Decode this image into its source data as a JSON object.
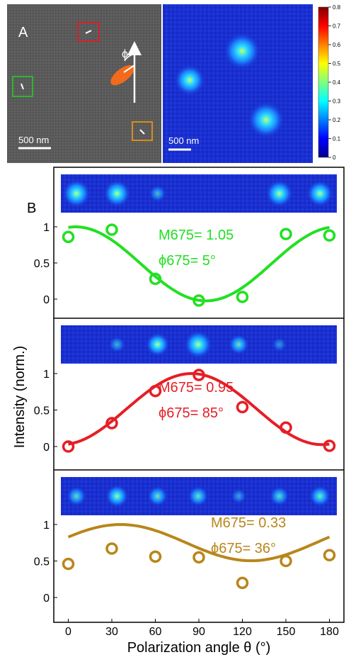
{
  "panel_a": {
    "label": "A",
    "sem_scalebar": "500 nm",
    "fluor_scalebar": "500 nm",
    "angle_symbol": "ϕ",
    "box_colors": [
      "#d8202a",
      "#2fb52f",
      "#d98a1c"
    ],
    "ellipse_color": "#f26a1b",
    "colorbar": {
      "ticks": [
        "0",
        "0.1",
        "0.2",
        "0.3",
        "0.4",
        "0.5",
        "0.6",
        "0.7",
        "0.8"
      ],
      "range": [
        0,
        0.8
      ]
    }
  },
  "panel_b": {
    "label": "B"
  },
  "chart_data": {
    "type": "scatter",
    "xlabel": "Polarization angle θ (°)",
    "ylabel": "Intensity (norm.)",
    "x_ticks": [
      "0",
      "30",
      "60",
      "90",
      "120",
      "150",
      "180"
    ],
    "y_ticks": [
      "0",
      "0.5",
      "1"
    ],
    "xlim": [
      -10,
      190
    ],
    "x": [
      0,
      30,
      60,
      90,
      120,
      150,
      180
    ],
    "series": [
      {
        "color": "#22e022",
        "values": [
          0.86,
          0.96,
          0.28,
          -0.02,
          0.03,
          0.9,
          0.88
        ],
        "fit": {
          "M": 1.05,
          "phi": 5
        },
        "m_label": "M675= 1.05",
        "phi_label": "ϕ675= 5°",
        "strip": [
          1.0,
          0.95,
          0.35,
          0.0,
          0.05,
          0.95,
          0.9
        ]
      },
      {
        "color": "#e61e25",
        "values": [
          0.0,
          0.32,
          0.76,
          0.98,
          0.54,
          0.26,
          0.01
        ],
        "fit": {
          "M": 0.95,
          "phi": 85
        },
        "m_label": "M675= 0.95",
        "phi_label": "ϕ675= 85°",
        "strip": [
          0.05,
          0.3,
          0.75,
          1.0,
          0.55,
          0.2,
          0.05
        ]
      },
      {
        "color": "#b8861a",
        "values": [
          0.46,
          0.67,
          0.56,
          0.55,
          0.2,
          0.5,
          0.58
        ],
        "fit": {
          "M": 0.33,
          "phi": 36
        },
        "m_label": "M675= 0.33",
        "phi_label": "ϕ675= 36°",
        "strip": [
          0.5,
          0.7,
          0.55,
          0.55,
          0.25,
          0.5,
          0.6
        ]
      }
    ]
  }
}
